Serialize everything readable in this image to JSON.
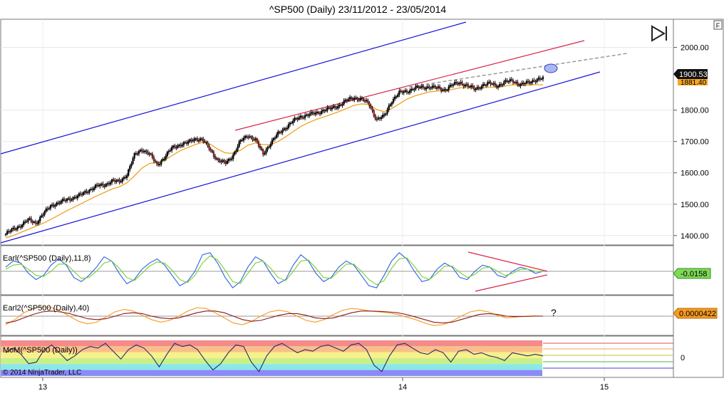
{
  "chart_data": [
    {
      "type": "candlestick",
      "title": "^SP500 (Daily)  23/11/2012 - 23/05/2014",
      "x_ticks": [
        "13",
        "14",
        "15"
      ],
      "y_ticks": [
        "1400.00",
        "1500.00",
        "1600.00",
        "1700.00",
        "1800.00",
        "2000.00"
      ],
      "ylim": [
        1370,
        2090
      ],
      "last_price": "1900.53",
      "last_ma_value": "1881.40",
      "annotations": [
        "F"
      ],
      "series": [
        {
          "name": "Close",
          "values": [
            1405,
            1420,
            1433,
            1450,
            1440,
            1470,
            1496,
            1505,
            1513,
            1522,
            1530,
            1545,
            1558,
            1560,
            1575,
            1570,
            1595,
            1655,
            1675,
            1660,
            1625,
            1650,
            1680,
            1690,
            1695,
            1710,
            1705,
            1675,
            1640,
            1630,
            1655,
            1700,
            1720,
            1705,
            1660,
            1695,
            1725,
            1745,
            1765,
            1780,
            1785,
            1790,
            1800,
            1805,
            1815,
            1830,
            1840,
            1835,
            1820,
            1770,
            1780,
            1830,
            1855,
            1860,
            1870,
            1872,
            1875,
            1870,
            1865,
            1880,
            1888,
            1878,
            1866,
            1880,
            1885,
            1878,
            1889,
            1895,
            1880,
            1888,
            1897,
            1900
          ]
        }
      ],
      "ma_values": [
        1392,
        1400,
        1410,
        1420,
        1430,
        1440,
        1452,
        1465,
        1478,
        1490,
        1502,
        1514,
        1526,
        1537,
        1548,
        1555,
        1568,
        1590,
        1615,
        1630,
        1632,
        1640,
        1655,
        1670,
        1680,
        1690,
        1697,
        1692,
        1676,
        1664,
        1662,
        1672,
        1688,
        1695,
        1690,
        1690,
        1700,
        1715,
        1732,
        1748,
        1760,
        1770,
        1778,
        1786,
        1795,
        1805,
        1815,
        1820,
        1818,
        1802,
        1795,
        1805,
        1820,
        1835,
        1845,
        1852,
        1858,
        1861,
        1862,
        1866,
        1871,
        1872,
        1870,
        1871,
        1873,
        1874,
        1877,
        1881,
        1879,
        1880,
        1881,
        1881
      ]
    },
    {
      "type": "line",
      "label": "Earl(^SP500 (Daily),11,8)",
      "last_value": "-0.0158",
      "ylim": [
        -1,
        1
      ],
      "series": [
        {
          "name": "fast",
          "values": [
            0.2,
            0.5,
            0.4,
            -0.1,
            -0.4,
            -0.2,
            0.3,
            0.6,
            0.3,
            -0.3,
            -0.5,
            -0.2,
            0.2,
            0.7,
            0.5,
            -0.1,
            -0.6,
            -0.4,
            0.1,
            0.4,
            0.6,
            0.3,
            -0.2,
            -0.7,
            -0.5,
            0.0,
            0.8,
            0.9,
            0.4,
            -0.3,
            -0.8,
            -0.5,
            0.2,
            0.7,
            0.5,
            -0.1,
            -0.6,
            -0.4,
            0.3,
            0.8,
            0.5,
            -0.1,
            -0.5,
            -0.3,
            0.2,
            0.5,
            0.3,
            -0.2,
            -0.7,
            -0.8,
            -0.2,
            0.5,
            0.9,
            0.6,
            0.0,
            -0.5,
            -0.4,
            0.1,
            0.4,
            0.2,
            -0.3,
            -0.4,
            0.0,
            0.3,
            0.2,
            -0.2,
            -0.3,
            0.0,
            0.2,
            0.1,
            -0.1,
            0.0
          ]
        },
        {
          "name": "slow",
          "values": [
            0.1,
            0.3,
            0.35,
            0.1,
            -0.2,
            -0.25,
            0.0,
            0.35,
            0.35,
            0.0,
            -0.35,
            -0.3,
            0.0,
            0.4,
            0.5,
            0.15,
            -0.3,
            -0.45,
            -0.1,
            0.25,
            0.45,
            0.4,
            0.05,
            -0.4,
            -0.55,
            -0.2,
            0.4,
            0.75,
            0.55,
            0.05,
            -0.5,
            -0.6,
            -0.1,
            0.4,
            0.5,
            0.15,
            -0.3,
            -0.45,
            0.0,
            0.5,
            0.55,
            0.15,
            -0.3,
            -0.35,
            0.0,
            0.35,
            0.35,
            0.0,
            -0.4,
            -0.65,
            -0.45,
            0.15,
            0.6,
            0.65,
            0.25,
            -0.25,
            -0.4,
            -0.1,
            0.25,
            0.25,
            -0.05,
            -0.3,
            -0.15,
            0.15,
            0.2,
            0.0,
            -0.2,
            -0.1,
            0.1,
            0.1,
            0.0,
            -0.02
          ]
        }
      ]
    },
    {
      "type": "line",
      "label": "Earl2(^SP500 (Daily),40)",
      "last_value": "0.0000422",
      "annotation": "?",
      "ylim": [
        -1,
        1
      ],
      "series": [
        {
          "name": "orange",
          "values": [
            -0.5,
            -0.2,
            0.2,
            0.45,
            0.55,
            0.5,
            0.3,
            0.0,
            -0.3,
            -0.45,
            -0.35,
            -0.05,
            0.25,
            0.4,
            0.3,
            0.05,
            -0.2,
            -0.35,
            -0.25,
            0.0,
            0.3,
            0.5,
            0.45,
            0.2,
            -0.1,
            -0.4,
            -0.5,
            -0.3,
            0.0,
            0.25,
            0.35,
            0.25,
            0.0,
            -0.25,
            -0.35,
            -0.2,
            0.1,
            0.35,
            0.45,
            0.4,
            0.3,
            0.25,
            0.2,
            0.1,
            -0.05,
            -0.2,
            -0.4,
            -0.55,
            -0.5,
            -0.3,
            0.0,
            0.25,
            0.35,
            0.25,
            0.05,
            -0.1,
            -0.05,
            0.0,
            0.02,
            0.0
          ]
        },
        {
          "name": "red",
          "values": [
            -0.4,
            -0.3,
            -0.1,
            0.1,
            0.25,
            0.3,
            0.25,
            0.15,
            0.0,
            -0.15,
            -0.2,
            -0.15,
            0.0,
            0.15,
            0.2,
            0.15,
            0.0,
            -0.1,
            -0.15,
            -0.1,
            0.05,
            0.2,
            0.3,
            0.3,
            0.2,
            0.0,
            -0.2,
            -0.3,
            -0.25,
            -0.1,
            0.05,
            0.15,
            0.15,
            0.05,
            -0.1,
            -0.15,
            -0.1,
            0.05,
            0.2,
            0.3,
            0.3,
            0.28,
            0.25,
            0.2,
            0.1,
            -0.05,
            -0.2,
            -0.35,
            -0.4,
            -0.35,
            -0.2,
            -0.05,
            0.1,
            0.15,
            0.1,
            0.0,
            -0.03,
            -0.02,
            0.0,
            0.0
          ]
        }
      ]
    },
    {
      "type": "line",
      "label": "MoM(^SP500 (Daily))",
      "y_ticks": [
        "0"
      ],
      "copyright": "© 2014 NinjaTrader, LLC",
      "ylim": [
        -1,
        1
      ],
      "band_colors": [
        "#f48a8a",
        "#f8c088",
        "#f8f08a",
        "#c8f08a",
        "#8ae8e8",
        "#8a8af8"
      ],
      "series": [
        {
          "name": "MoM",
          "values": [
            0.3,
            0.6,
            0.2,
            -0.4,
            -0.3,
            0.5,
            0.8,
            0.3,
            -0.2,
            0.1,
            0.5,
            0.7,
            0.6,
            0.9,
            0.4,
            -0.1,
            0.5,
            0.8,
            0.6,
            0.1,
            -0.6,
            0.2,
            0.9,
            0.7,
            0.8,
            0.5,
            -0.2,
            -0.8,
            -0.4,
            0.3,
            0.8,
            0.7,
            -0.3,
            -0.9,
            0.1,
            0.7,
            0.9,
            0.6,
            0.3,
            0.5,
            0.4,
            0.7,
            0.8,
            0.6,
            0.4,
            0.8,
            0.9,
            0.5,
            -0.5,
            -0.9,
            0.1,
            0.8,
            0.9,
            0.6,
            0.3,
            0.2,
            0.5,
            0.3,
            -0.3,
            0.4,
            0.5,
            0.2,
            0.3,
            0.1,
            0.0,
            -0.2,
            0.3,
            0.2,
            0.1,
            0.2,
            0.1
          ]
        }
      ]
    }
  ]
}
